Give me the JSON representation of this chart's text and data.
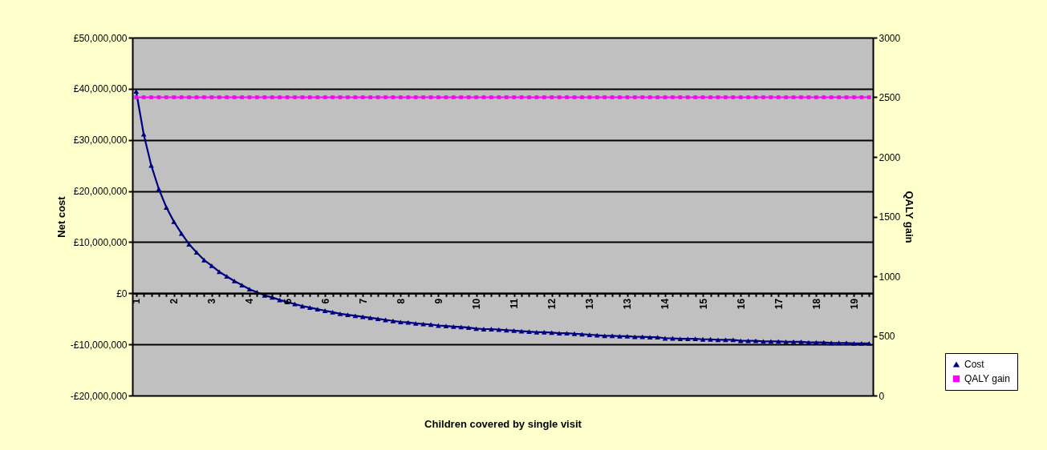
{
  "chart_data": {
    "type": "line",
    "xlabel": "Children covered by single visit",
    "ylabel": "Net cost",
    "y2label": "QALY gain",
    "categories": [
      "1",
      null,
      null,
      null,
      null,
      "2",
      null,
      null,
      null,
      null,
      "3",
      null,
      null,
      null,
      null,
      "4",
      null,
      null,
      null,
      null,
      "5",
      null,
      null,
      null,
      null,
      "6",
      null,
      null,
      null,
      null,
      "7",
      null,
      null,
      null,
      null,
      "8",
      null,
      null,
      null,
      null,
      "9",
      null,
      null,
      null,
      null,
      "10",
      null,
      null,
      null,
      null,
      "11",
      null,
      null,
      null,
      null,
      "12",
      null,
      null,
      null,
      null,
      "13",
      null,
      null,
      null,
      null,
      "13",
      null,
      null,
      null,
      null,
      "14",
      null,
      null,
      null,
      null,
      "15",
      null,
      null,
      null,
      null,
      "16",
      null,
      null,
      null,
      null,
      "17",
      null,
      null,
      null,
      null,
      "18",
      null,
      null,
      null,
      null,
      "19",
      null,
      null
    ],
    "series": [
      {
        "name": "Cost",
        "color": "#000080",
        "marker": "triangle",
        "line_style": "solid",
        "values": [
          39500000,
          31100000,
          25000000,
          20400000,
          16800000,
          14000000,
          11700000,
          9600000,
          8000000,
          6500000,
          5400000,
          4200000,
          3300000,
          2400000,
          1600000,
          800000,
          200000,
          -400000,
          -800000,
          -1300000,
          -1700000,
          -2100000,
          -2500000,
          -2800000,
          -3100000,
          -3400000,
          -3700000,
          -4000000,
          -4200000,
          -4400000,
          -4600000,
          -4800000,
          -5000000,
          -5200000,
          -5400000,
          -5600000,
          -5700000,
          -5900000,
          -6000000,
          -6100000,
          -6300000,
          -6400000,
          -6500000,
          -6600000,
          -6700000,
          -6900000,
          -7000000,
          -7000000,
          -7100000,
          -7200000,
          -7300000,
          -7400000,
          -7500000,
          -7600000,
          -7600000,
          -7700000,
          -7800000,
          -7800000,
          -7900000,
          -8000000,
          -8100000,
          -8200000,
          -8300000,
          -8300000,
          -8400000,
          -8400000,
          -8500000,
          -8500000,
          -8600000,
          -8600000,
          -8800000,
          -8800000,
          -8900000,
          -8900000,
          -8900000,
          -9000000,
          -9000000,
          -9100000,
          -9100000,
          -9100000,
          -9300000,
          -9300000,
          -9300000,
          -9400000,
          -9400000,
          -9400000,
          -9500000,
          -9500000,
          -9500000,
          -9600000,
          -9600000,
          -9600000,
          -9700000,
          -9700000,
          -9700000,
          -9800000,
          -9800000,
          -9800000
        ]
      },
      {
        "name": "QALY gain",
        "color": "#ff00ff",
        "marker": "square",
        "line_style": "solid",
        "axis": "y2",
        "values": [
          2500,
          2500,
          2500,
          2500,
          2500,
          2500,
          2500,
          2500,
          2500,
          2500,
          2500,
          2500,
          2500,
          2500,
          2500,
          2500,
          2500,
          2500,
          2500,
          2500,
          2500,
          2500,
          2500,
          2500,
          2500,
          2500,
          2500,
          2500,
          2500,
          2500,
          2500,
          2500,
          2500,
          2500,
          2500,
          2500,
          2500,
          2500,
          2500,
          2500,
          2500,
          2500,
          2500,
          2500,
          2500,
          2500,
          2500,
          2500,
          2500,
          2500,
          2500,
          2500,
          2500,
          2500,
          2500,
          2500,
          2500,
          2500,
          2500,
          2500,
          2500,
          2500,
          2500,
          2500,
          2500,
          2500,
          2500,
          2500,
          2500,
          2500,
          2500,
          2500,
          2500,
          2500,
          2500,
          2500,
          2500,
          2500,
          2500,
          2500,
          2500,
          2500,
          2500,
          2500,
          2500,
          2500,
          2500,
          2500,
          2500,
          2500,
          2500,
          2500,
          2500,
          2500,
          2500,
          2500,
          2500,
          2500
        ]
      }
    ],
    "ylim": [
      -20000000,
      50000000
    ],
    "yticks": [
      {
        "value": -20000000,
        "label": "-£20,000,000"
      },
      {
        "value": -10000000,
        "label": "-£10,000,000"
      },
      {
        "value": 0,
        "label": "£0"
      },
      {
        "value": 10000000,
        "label": "£10,000,000"
      },
      {
        "value": 20000000,
        "label": "£20,000,000"
      },
      {
        "value": 30000000,
        "label": "£30,000,000"
      },
      {
        "value": 40000000,
        "label": "£40,000,000"
      },
      {
        "value": 50000000,
        "label": "£50,000,000"
      }
    ],
    "y2lim": [
      0,
      3000
    ],
    "y2ticks": [
      0,
      500,
      1000,
      1500,
      2000,
      2500,
      3000
    ],
    "grid": "y",
    "legend": "right"
  }
}
